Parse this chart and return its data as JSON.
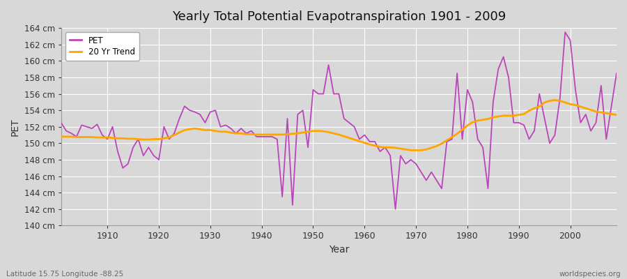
{
  "title": "Yearly Total Potential Evapotranspiration 1901 - 2009",
  "xlabel": "Year",
  "ylabel": "PET",
  "xlim": [
    1901,
    2009
  ],
  "ylim": [
    140,
    164
  ],
  "yticks": [
    140,
    142,
    144,
    146,
    148,
    150,
    152,
    154,
    156,
    158,
    160,
    162,
    164
  ],
  "xticks": [
    1910,
    1920,
    1930,
    1940,
    1950,
    1960,
    1970,
    1980,
    1990,
    2000
  ],
  "pet_color": "#bb44bb",
  "trend_color": "#ffa500",
  "bg_color": "#d8d8d8",
  "plot_bg_color": "#d8d8d8",
  "grid_color": "#ffffff",
  "footer_left": "Latitude 15.75 Longitude -88.25",
  "footer_right": "worldspecies.org",
  "pet_data": [
    152.5,
    151.5,
    151.2,
    150.8,
    152.2,
    152.0,
    151.8,
    152.3,
    151.0,
    150.5,
    152.0,
    149.0,
    147.0,
    147.5,
    149.5,
    150.5,
    148.5,
    149.5,
    148.5,
    148.0,
    152.0,
    150.5,
    151.2,
    153.0,
    154.5,
    154.0,
    153.8,
    153.5,
    152.5,
    153.8,
    154.0,
    152.0,
    152.2,
    151.8,
    151.2,
    151.8,
    151.2,
    151.5,
    150.8,
    150.8,
    150.8,
    150.8,
    150.5,
    143.5,
    153.0,
    142.5,
    153.5,
    154.0,
    149.5,
    156.5,
    156.0,
    156.0,
    159.5,
    156.0,
    156.0,
    153.0,
    152.5,
    152.0,
    150.5,
    151.0,
    150.2,
    150.2,
    149.0,
    149.5,
    148.5,
    142.0,
    148.5,
    147.5,
    148.0,
    147.5,
    146.5,
    145.5,
    146.5,
    145.5,
    144.5,
    150.2,
    150.5,
    158.5,
    150.5,
    156.5,
    155.0,
    150.5,
    149.5,
    144.5,
    155.0,
    159.0,
    160.5,
    158.0,
    152.5,
    152.5,
    152.2,
    150.5,
    151.5,
    156.0,
    153.0,
    150.0,
    151.0,
    155.5,
    163.5,
    162.5,
    156.5,
    152.5,
    153.5,
    151.5,
    152.5,
    157.0,
    150.5,
    154.5,
    158.5
  ],
  "trend_data": [
    150.8,
    150.8,
    150.8,
    150.75,
    150.75,
    150.75,
    150.75,
    150.7,
    150.7,
    150.7,
    150.65,
    150.6,
    150.6,
    150.55,
    150.55,
    150.5,
    150.45,
    150.45,
    150.5,
    150.5,
    150.6,
    150.7,
    151.0,
    151.3,
    151.6,
    151.7,
    151.8,
    151.7,
    151.6,
    151.6,
    151.5,
    151.4,
    151.4,
    151.3,
    151.2,
    151.2,
    151.1,
    151.1,
    151.05,
    151.05,
    151.05,
    151.05,
    151.05,
    151.05,
    151.1,
    151.15,
    151.2,
    151.3,
    151.4,
    151.5,
    151.5,
    151.45,
    151.35,
    151.2,
    151.05,
    150.85,
    150.65,
    150.45,
    150.25,
    150.05,
    149.85,
    149.7,
    149.55,
    149.5,
    149.5,
    149.45,
    149.35,
    149.25,
    149.15,
    149.15,
    149.15,
    149.25,
    149.45,
    149.65,
    149.95,
    150.35,
    150.75,
    151.15,
    151.65,
    152.15,
    152.55,
    152.75,
    152.85,
    152.95,
    153.15,
    153.25,
    153.35,
    153.35,
    153.35,
    153.45,
    153.55,
    153.95,
    154.25,
    154.45,
    154.95,
    155.15,
    155.25,
    155.15,
    154.95,
    154.75,
    154.65,
    154.45,
    154.25,
    154.05,
    153.85,
    153.75,
    153.65,
    153.55,
    153.45
  ]
}
